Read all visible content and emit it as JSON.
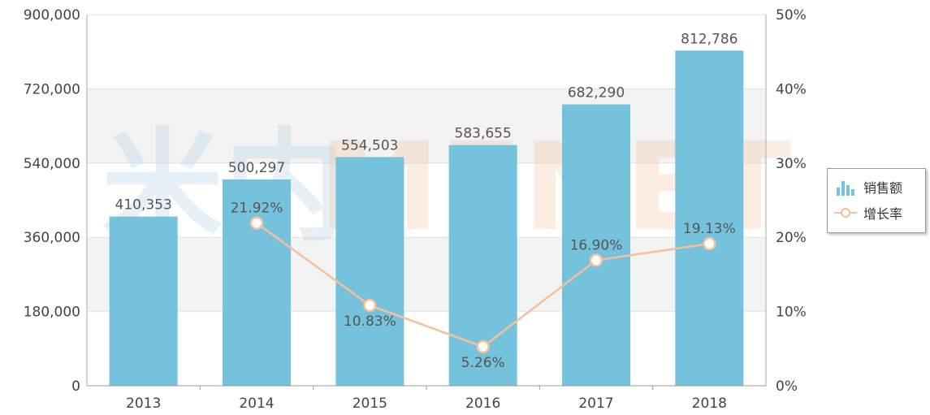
{
  "chart_data": {
    "type": "bar",
    "categories": [
      "2013",
      "2014",
      "2015",
      "2016",
      "2017",
      "2018"
    ],
    "series": [
      {
        "name": "销售额",
        "type": "bar",
        "axis": "left",
        "values": [
          410353,
          500297,
          554503,
          583655,
          682290,
          812786
        ],
        "labels": [
          "410,353",
          "500,297",
          "554,503",
          "583,655",
          "682,290",
          "812,786"
        ],
        "color": "#74c2db"
      },
      {
        "name": "增长率",
        "type": "line",
        "axis": "right",
        "values": [
          null,
          21.92,
          10.83,
          5.26,
          16.9,
          19.13
        ],
        "labels": [
          "",
          "21.92%",
          "10.83%",
          "5.26%",
          "16.90%",
          "19.13%"
        ],
        "color": "#f5c09b"
      }
    ],
    "y_left": {
      "min": 0,
      "max": 900000,
      "ticks": [
        "0",
        "180,000",
        "360,000",
        "540,000",
        "720,000",
        "900,000"
      ]
    },
    "y_right": {
      "min": 0,
      "max": 50,
      "ticks": [
        "0%",
        "10%",
        "20%",
        "30%",
        "40%",
        "50%"
      ]
    },
    "grid": true,
    "legend_position": "right"
  },
  "watermark": {
    "cn": "米内",
    "en": "MENET"
  }
}
